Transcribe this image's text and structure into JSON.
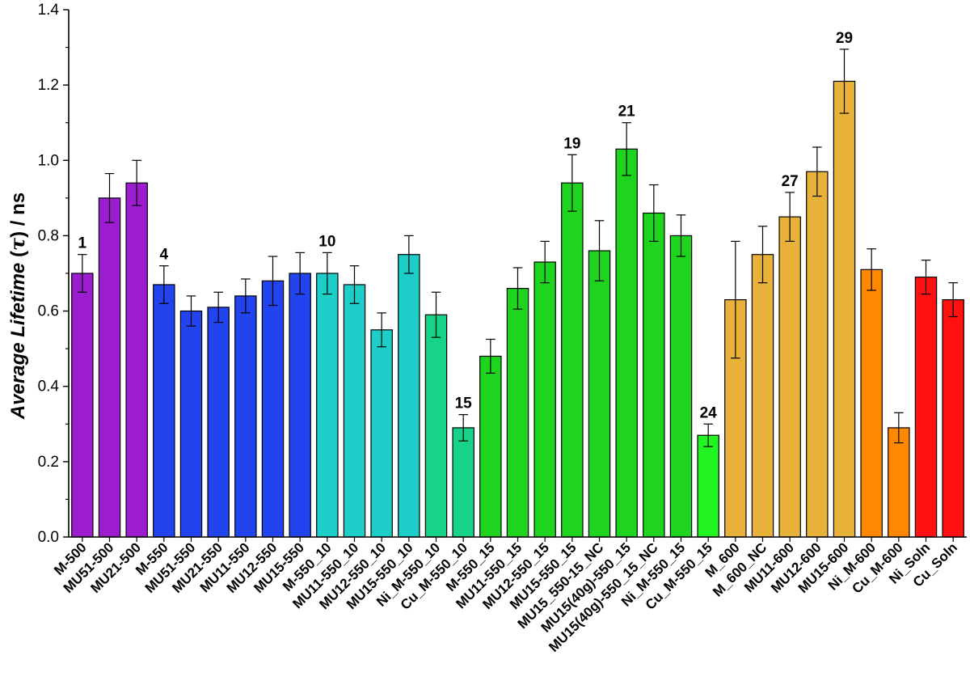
{
  "chart_data": {
    "type": "bar",
    "xlabel": "",
    "ylabel": "Average Lifetime (τ) / ns",
    "ylabel_parts": {
      "italic": "Average Lifetime ",
      "paren_open": "(",
      "tau": "τ",
      "paren_close": ")",
      "unit": " / ns"
    },
    "ylim": [
      0,
      1.4
    ],
    "y_ticks": [
      "0.0",
      "0.2",
      "0.4",
      "0.6",
      "0.8",
      "1.0",
      "1.2",
      "1.4"
    ],
    "grid": false,
    "legend": "none",
    "categories": [
      "M-500",
      "MU51-500",
      "MU21-500",
      "M-550",
      "MU51-550",
      "MU21-550",
      "MU11-550",
      "MU12-550",
      "MU15-550",
      "M-550_10",
      "MU11-550_10",
      "MU12-550_10",
      "MU15-550_10",
      "Ni_M-550_10",
      "Cu_M-550_10",
      "M-550_15",
      "MU11-550_15",
      "MU12-550_15",
      "MU15-550_15",
      "MU15_550-15_NC",
      "MU15(40g)-550_15",
      "MU15(40g)-550_15_NC",
      "Ni_M-550_15",
      "Cu_M-550_15",
      "M_600",
      "M_600_NC",
      "MU11-600",
      "MU12-600",
      "MU15-600",
      "Ni_M-600",
      "Cu_M-600",
      "Ni_Soln",
      "Cu_Soln"
    ],
    "values": [
      0.7,
      0.9,
      0.94,
      0.67,
      0.6,
      0.61,
      0.64,
      0.68,
      0.7,
      0.7,
      0.67,
      0.55,
      0.75,
      0.59,
      0.29,
      0.48,
      0.66,
      0.73,
      0.94,
      0.76,
      1.03,
      0.86,
      0.8,
      0.27,
      0.63,
      0.75,
      0.85,
      0.97,
      1.21,
      0.71,
      0.29,
      0.69,
      0.63
    ],
    "errors": [
      0.05,
      0.065,
      0.06,
      0.05,
      0.04,
      0.04,
      0.045,
      0.065,
      0.055,
      0.055,
      0.05,
      0.045,
      0.05,
      0.06,
      0.035,
      0.045,
      0.055,
      0.055,
      0.075,
      0.08,
      0.07,
      0.075,
      0.055,
      0.03,
      0.155,
      0.075,
      0.065,
      0.065,
      0.085,
      0.055,
      0.04,
      0.045,
      0.045
    ],
    "colors": [
      "#9b1dcf",
      "#9b1dcf",
      "#9b1dcf",
      "#2244ee",
      "#2244ee",
      "#2244ee",
      "#2244ee",
      "#2244ee",
      "#2244ee",
      "#1ccdc8",
      "#1ccdc8",
      "#1ccdc8",
      "#1ccdc8",
      "#16d389",
      "#16d389",
      "#1ed41e",
      "#1ed41e",
      "#1ed41e",
      "#1ed41e",
      "#1ed41e",
      "#1ed41e",
      "#1ed41e",
      "#1ed41e",
      "#22f422",
      "#e8b13a",
      "#e8b13a",
      "#e8b13a",
      "#e8b13a",
      "#e8b13a",
      "#ff8800",
      "#ff8800",
      "#ff1111",
      "#ff1111"
    ],
    "annotations": [
      {
        "index": 0,
        "text": "1"
      },
      {
        "index": 3,
        "text": "4"
      },
      {
        "index": 9,
        "text": "10"
      },
      {
        "index": 14,
        "text": "15"
      },
      {
        "index": 18,
        "text": "19"
      },
      {
        "index": 20,
        "text": "21"
      },
      {
        "index": 23,
        "text": "24"
      },
      {
        "index": 26,
        "text": "27"
      },
      {
        "index": 28,
        "text": "29"
      }
    ]
  }
}
